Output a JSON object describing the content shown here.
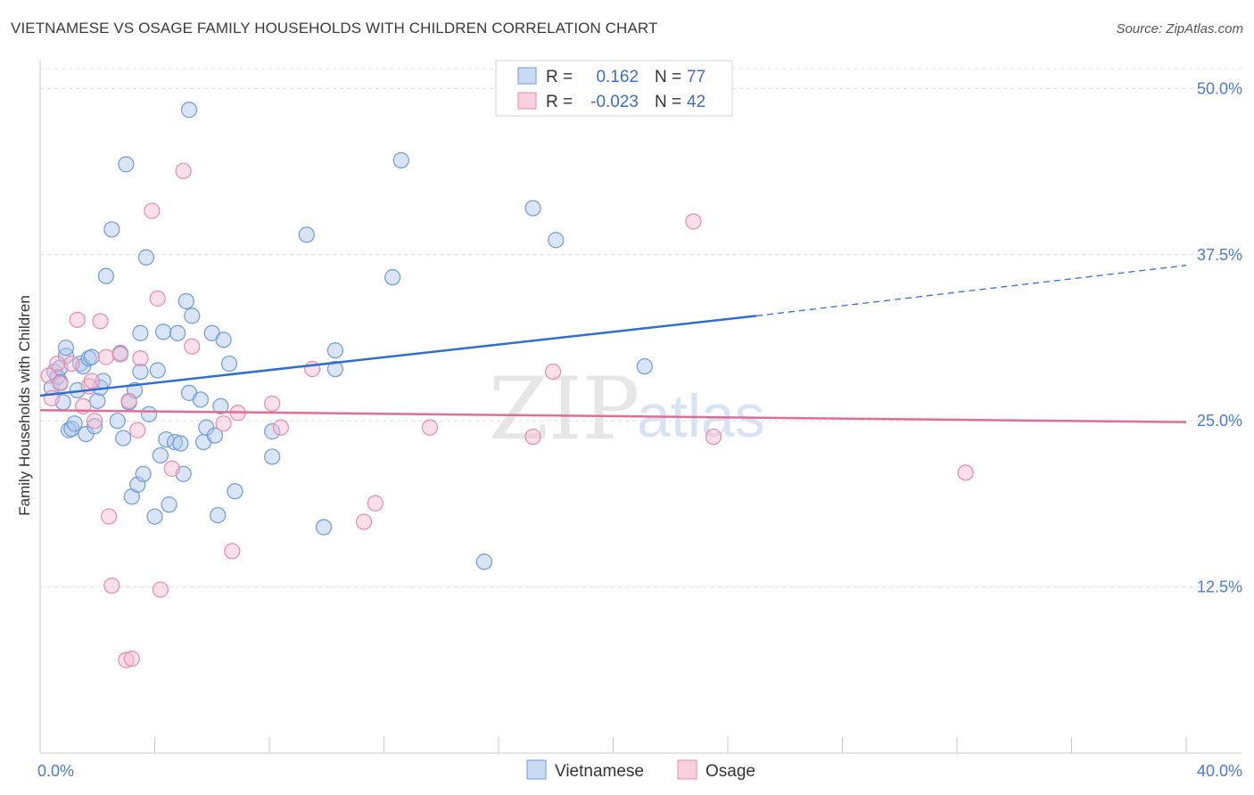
{
  "title": "VIETNAMESE VS OSAGE FAMILY HOUSEHOLDS WITH CHILDREN CORRELATION CHART",
  "source": "Source: ZipAtlas.com",
  "watermark": {
    "zip": "ZIP",
    "atlas": "atlas"
  },
  "chart_data": {
    "type": "scatter",
    "title": "VIETNAMESE VS OSAGE FAMILY HOUSEHOLDS WITH CHILDREN CORRELATION CHART",
    "xlabel": "",
    "ylabel": "Family Households with Children",
    "xlim": [
      0,
      40
    ],
    "ylim": [
      0,
      51.5
    ],
    "x_tick_labels": [
      {
        "value": 0,
        "label": "0.0%"
      },
      {
        "value": 40,
        "label": "40.0%"
      }
    ],
    "x_minor_ticks": [
      4,
      8,
      12,
      16,
      20,
      24,
      28,
      32,
      36,
      40
    ],
    "y_ticks": [
      {
        "value": 12.5,
        "label": "12.5%"
      },
      {
        "value": 25,
        "label": "25.0%"
      },
      {
        "value": 37.5,
        "label": "37.5%"
      },
      {
        "value": 50,
        "label": "50.0%"
      }
    ],
    "grid": true,
    "legend": {
      "position": "top-center",
      "rows": [
        {
          "r_label": "R =",
          "r_value": "0.162",
          "n_label": "N =",
          "n_value": "77"
        },
        {
          "r_label": "R =",
          "r_value": "-0.023",
          "n_label": "N =",
          "n_value": "42"
        }
      ]
    },
    "series": [
      {
        "name": "Vietnamese",
        "color": "#8fb4e8",
        "edge": "#6d9ad8",
        "trend": {
          "x0": 0,
          "y0": 26.9,
          "x1": 25.0,
          "y1": 32.9,
          "dash_x1": 40,
          "dash_y1": 36.7,
          "color": "#2f6fcf"
        },
        "points": [
          [
            0.4,
            27.5
          ],
          [
            0.5,
            28.7
          ],
          [
            0.6,
            28.3
          ],
          [
            0.7,
            29.0
          ],
          [
            0.7,
            27.9
          ],
          [
            0.8,
            26.4
          ],
          [
            0.9,
            29.9
          ],
          [
            0.9,
            30.5
          ],
          [
            1.0,
            24.3
          ],
          [
            1.1,
            24.4
          ],
          [
            1.2,
            24.8
          ],
          [
            1.3,
            27.3
          ],
          [
            1.4,
            29.3
          ],
          [
            1.5,
            29.1
          ],
          [
            1.6,
            24.0
          ],
          [
            1.7,
            29.7
          ],
          [
            1.8,
            29.8
          ],
          [
            1.9,
            24.6
          ],
          [
            2.0,
            26.5
          ],
          [
            2.1,
            27.5
          ],
          [
            2.2,
            28.0
          ],
          [
            2.3,
            35.9
          ],
          [
            2.5,
            39.4
          ],
          [
            2.7,
            25.0
          ],
          [
            2.8,
            30.1
          ],
          [
            2.9,
            23.7
          ],
          [
            3.0,
            44.3
          ],
          [
            3.1,
            26.4
          ],
          [
            3.2,
            19.3
          ],
          [
            3.3,
            27.3
          ],
          [
            3.4,
            20.2
          ],
          [
            3.5,
            28.7
          ],
          [
            3.5,
            31.6
          ],
          [
            3.6,
            21.0
          ],
          [
            3.7,
            37.3
          ],
          [
            3.8,
            25.5
          ],
          [
            4.0,
            17.8
          ],
          [
            4.1,
            28.8
          ],
          [
            4.2,
            22.4
          ],
          [
            4.3,
            31.7
          ],
          [
            4.4,
            23.6
          ],
          [
            4.5,
            18.7
          ],
          [
            4.7,
            23.4
          ],
          [
            4.8,
            31.6
          ],
          [
            4.9,
            23.3
          ],
          [
            5.0,
            21.0
          ],
          [
            5.1,
            34.0
          ],
          [
            5.2,
            27.1
          ],
          [
            5.2,
            48.4
          ],
          [
            5.3,
            32.9
          ],
          [
            5.6,
            26.6
          ],
          [
            5.7,
            23.4
          ],
          [
            5.8,
            24.5
          ],
          [
            6.0,
            31.6
          ],
          [
            6.1,
            23.9
          ],
          [
            6.2,
            17.9
          ],
          [
            6.3,
            26.1
          ],
          [
            6.4,
            31.1
          ],
          [
            6.6,
            29.3
          ],
          [
            6.8,
            19.7
          ],
          [
            8.1,
            24.2
          ],
          [
            8.1,
            22.3
          ],
          [
            9.3,
            39.0
          ],
          [
            9.9,
            17.0
          ],
          [
            10.3,
            30.3
          ],
          [
            10.3,
            28.9
          ],
          [
            12.3,
            35.8
          ],
          [
            12.6,
            44.6
          ],
          [
            15.5,
            14.4
          ],
          [
            17.2,
            41.0
          ],
          [
            18.0,
            38.6
          ],
          [
            21.1,
            29.1
          ]
        ]
      },
      {
        "name": "Osage",
        "color": "#f3b3c8",
        "edge": "#e88aaa",
        "trend": {
          "x0": 0,
          "y0": 25.8,
          "x1": 40,
          "y1": 24.9,
          "color": "#e06d96"
        },
        "points": [
          [
            0.3,
            28.4
          ],
          [
            0.4,
            26.7
          ],
          [
            0.6,
            29.3
          ],
          [
            0.7,
            27.8
          ],
          [
            1.1,
            29.3
          ],
          [
            1.3,
            32.6
          ],
          [
            1.5,
            26.1
          ],
          [
            1.7,
            27.6
          ],
          [
            1.8,
            28.0
          ],
          [
            1.9,
            25.0
          ],
          [
            2.1,
            32.5
          ],
          [
            2.3,
            29.8
          ],
          [
            2.4,
            17.8
          ],
          [
            2.5,
            12.6
          ],
          [
            2.8,
            30.0
          ],
          [
            3.0,
            7.0
          ],
          [
            3.1,
            26.5
          ],
          [
            3.2,
            7.1
          ],
          [
            3.4,
            24.3
          ],
          [
            3.5,
            29.7
          ],
          [
            3.9,
            40.8
          ],
          [
            4.1,
            34.2
          ],
          [
            4.2,
            12.3
          ],
          [
            4.6,
            21.4
          ],
          [
            5.0,
            43.8
          ],
          [
            5.3,
            30.6
          ],
          [
            6.4,
            24.8
          ],
          [
            6.7,
            15.2
          ],
          [
            6.9,
            25.6
          ],
          [
            8.1,
            26.3
          ],
          [
            8.4,
            24.5
          ],
          [
            9.5,
            28.9
          ],
          [
            11.3,
            17.4
          ],
          [
            11.7,
            18.8
          ],
          [
            13.6,
            24.5
          ],
          [
            17.2,
            23.8
          ],
          [
            17.9,
            28.7
          ],
          [
            22.8,
            40.0
          ],
          [
            23.5,
            23.8
          ],
          [
            32.3,
            21.1
          ]
        ]
      }
    ]
  },
  "bottom_legend": [
    {
      "label": "Vietnamese"
    },
    {
      "label": "Osage"
    }
  ],
  "colors": {
    "blue": "#4a7bd0",
    "blue_fill": "#c8daf4",
    "pink_fill": "#f9d1de",
    "grid": "#dedede"
  }
}
